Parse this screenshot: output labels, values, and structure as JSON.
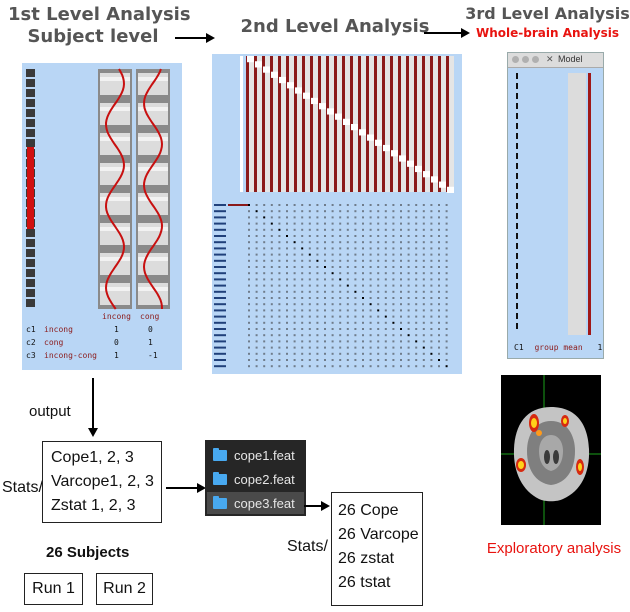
{
  "first_level": {
    "title_line1": "1st Level Analysis",
    "title_line2": "Subject level",
    "col_headers": [
      "incong",
      "cong"
    ],
    "contrasts": [
      {
        "id": "c1",
        "name": "incong",
        "values": [
          "1",
          "0"
        ]
      },
      {
        "id": "c2",
        "name": "cong",
        "values": [
          "0",
          "1"
        ]
      },
      {
        "id": "c3",
        "name": "incong-cong",
        "values": [
          "1",
          "-1"
        ]
      }
    ]
  },
  "second_level": {
    "title": "2nd Level Analysis"
  },
  "third_level": {
    "title": "3rd Level Analysis",
    "subtitle": "Whole-brain Analysis",
    "window_title": "Model",
    "contrast_id": "C1",
    "contrast_name": "group mean",
    "contrast_value": "1"
  },
  "output_label": "output",
  "stats_box_1": {
    "label": "Stats/",
    "lines": [
      "Cope1, 2, 3",
      "Varcope1, 2, 3",
      "Zstat 1, 2, 3"
    ]
  },
  "subjects_label": "26 Subjects",
  "runs": [
    "Run 1",
    "Run 2"
  ],
  "feat_folders": [
    "cope1.feat",
    "cope2.feat",
    "cope3.feat"
  ],
  "stats_box_2": {
    "label": "Stats/",
    "lines": [
      "26 Cope",
      "26 Varcope",
      "26 zstat",
      "26 tstat"
    ]
  },
  "exploratory_label": "Exploratory analysis",
  "colors": {
    "panel_blue": "#b9d6f5",
    "red": "#e8130f",
    "title_gray": "#555555"
  }
}
